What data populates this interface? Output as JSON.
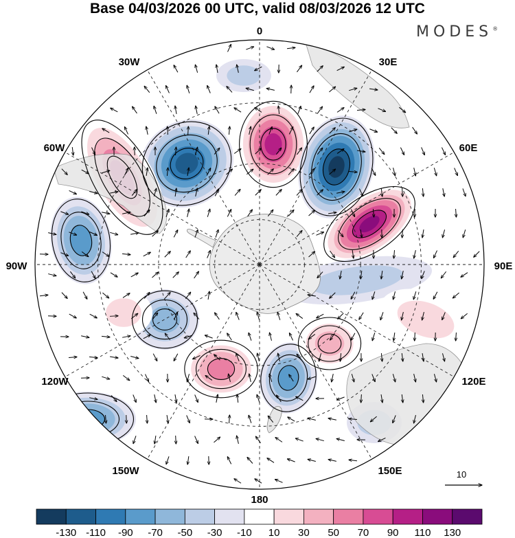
{
  "title": "Base 04/03/2026 00 UTC, valid 08/03/2026 12 UTC",
  "brand": {
    "name": "MODES",
    "mark": "®"
  },
  "projection": "south-polar-stereographic",
  "longitude_labels": [
    {
      "name": "lon-0",
      "text": "0"
    },
    {
      "name": "lon-30e",
      "text": "30E"
    },
    {
      "name": "lon-60e",
      "text": "60E"
    },
    {
      "name": "lon-90e",
      "text": "90E"
    },
    {
      "name": "lon-120e",
      "text": "120E"
    },
    {
      "name": "lon-150e",
      "text": "150E"
    },
    {
      "name": "lon-180",
      "text": "180"
    },
    {
      "name": "lon-150w",
      "text": "150W"
    },
    {
      "name": "lon-120w",
      "text": "120W"
    },
    {
      "name": "lon-90w",
      "text": "90W"
    },
    {
      "name": "lon-60w",
      "text": "60W"
    },
    {
      "name": "lon-30w",
      "text": "30W"
    }
  ],
  "vector_reference": {
    "value": "10"
  },
  "colorbar": {
    "labels": [
      "-130",
      "-110",
      "-90",
      "-70",
      "-50",
      "-30",
      "-10",
      "10",
      "30",
      "50",
      "70",
      "90",
      "110",
      "130"
    ],
    "colors": [
      "#143b5e",
      "#1e5c8c",
      "#2f7ab3",
      "#5a9bcb",
      "#8fb7da",
      "#bccde6",
      "#e2e2f0",
      "#ffffff",
      "#f9d9de",
      "#f3b1c0",
      "#ea7fa3",
      "#d84c94",
      "#b51f86",
      "#8a0c7c",
      "#5b0a6e"
    ]
  },
  "anomaly_centers": [
    {
      "sign": "negative",
      "level": -110
    },
    {
      "sign": "positive",
      "level": 110
    },
    {
      "sign": "negative",
      "level": -130
    },
    {
      "sign": "positive",
      "level": 130
    },
    {
      "sign": "positive",
      "level": 90
    },
    {
      "sign": "negative",
      "level": -70
    },
    {
      "sign": "negative",
      "level": -50
    },
    {
      "sign": "negative",
      "level": -70
    },
    {
      "sign": "positive",
      "level": 70
    },
    {
      "sign": "negative",
      "level": -70
    },
    {
      "sign": "positive",
      "level": 50
    },
    {
      "sign": "negative",
      "level": -30
    },
    {
      "sign": "positive",
      "level": 30
    },
    {
      "sign": "positive",
      "level": 30
    },
    {
      "sign": "negative",
      "level": -30
    },
    {
      "sign": "negative",
      "level": -30
    }
  ]
}
